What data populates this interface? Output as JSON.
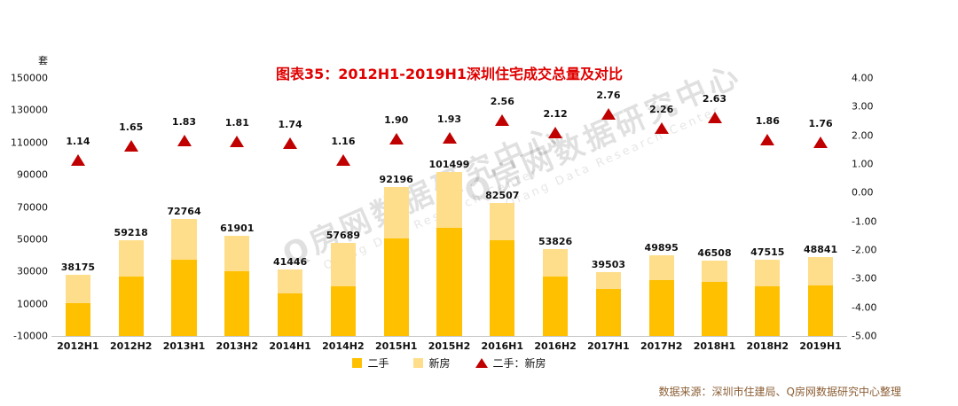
{
  "title": "图表35：2012H1-2019H1深圳住宅成交总量及对比",
  "unit_label": "套",
  "source": "数据来源：深圳市住建局、Q房网数据研究中心整理",
  "watermark": {
    "text_cn": "Q房网数据研究中心",
    "text_en": "Qfang Data Research Center"
  },
  "legend": [
    {
      "label": "二手"
    },
    {
      "label": "新房"
    },
    {
      "label": "二手：新房"
    }
  ],
  "colors": {
    "secondhand": "#FFC000",
    "newhome": "#FFDE8B",
    "ratio": "#C00000",
    "title": "#E00000",
    "source": "#8B5E34"
  },
  "chart_data": {
    "type": "bar",
    "subtype": "stacked bars on left axis + triangle scatter ratio on right axis",
    "title": "图表35：2012H1-2019H1深圳住宅成交总量及对比",
    "categories": [
      "2012H1",
      "2012H2",
      "2013H1",
      "2013H2",
      "2014H1",
      "2014H2",
      "2015H1",
      "2015H2",
      "2016H1",
      "2016H2",
      "2017H1",
      "2017H2",
      "2018H1",
      "2018H2",
      "2019H1"
    ],
    "totals": [
      38175,
      59218,
      72764,
      61901,
      41446,
      57689,
      92196,
      101499,
      82507,
      53826,
      39503,
      49895,
      46508,
      47515,
      48841
    ],
    "series": [
      {
        "name": "二手",
        "axis": "left",
        "estimated": true,
        "values": [
          20335,
          36871,
          47053,
          39873,
          26318,
          30981,
          60404,
          66858,
          59330,
          36575,
          28997,
          34590,
          33695,
          30900,
          31145
        ]
      },
      {
        "name": "新房",
        "axis": "left",
        "estimated": true,
        "values": [
          17840,
          22347,
          25711,
          22028,
          15128,
          26708,
          31792,
          34641,
          23177,
          17251,
          10506,
          15305,
          12813,
          16615,
          17696
        ]
      },
      {
        "name": "二手：新房",
        "axis": "right",
        "marker": "triangle",
        "values": [
          1.14,
          1.65,
          1.83,
          1.81,
          1.74,
          1.16,
          1.9,
          1.93,
          2.56,
          2.12,
          2.76,
          2.26,
          2.63,
          1.86,
          1.76
        ]
      }
    ],
    "left_axis": {
      "unit": "套",
      "min": -10000,
      "max": 150000,
      "step": 20000,
      "ticks": [
        "150000",
        "130000",
        "110000",
        "90000",
        "70000",
        "50000",
        "30000",
        "10000",
        "-10000"
      ]
    },
    "right_axis": {
      "min": -5,
      "max": 4,
      "step": 1,
      "ticks": [
        "4.00",
        "3.00",
        "2.00",
        "1.00",
        "0.00",
        "-1.00",
        "-2.00",
        "-3.00",
        "-4.00",
        "-5.00"
      ]
    },
    "grid": false,
    "legend_position": "bottom"
  }
}
